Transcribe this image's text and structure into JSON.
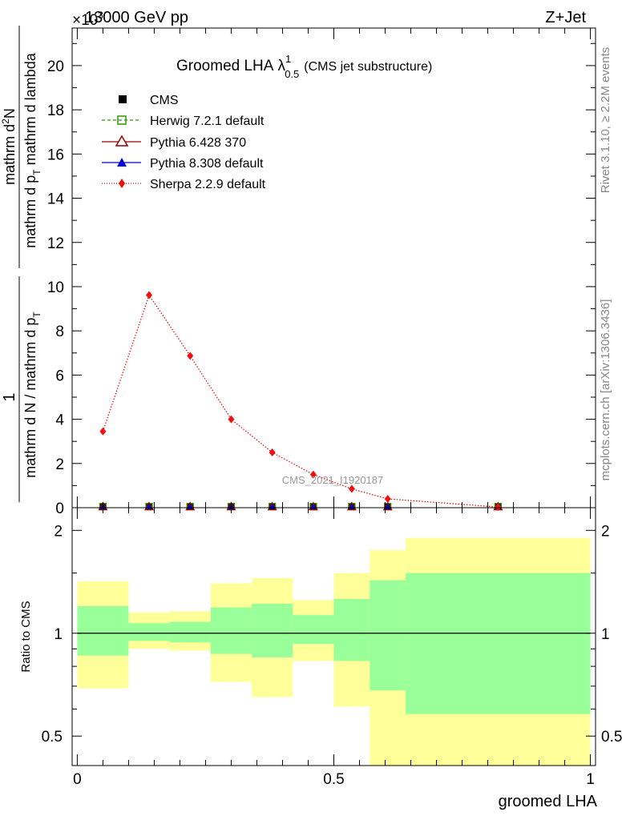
{
  "header": {
    "energy_label": "13000 GeV pp",
    "process_label": "Z+Jet",
    "exponent_label": "×10"
  },
  "title": {
    "main": "Groomed LHA",
    "lambda": "λ",
    "lambda_sup": "1",
    "lambda_sub": "0.5",
    "suffix": "(CMS jet substructure)"
  },
  "side_labels": {
    "rivet": "Rivet 3.1.10, ≥ 2.2M events",
    "mcplots": "mcplots.cern.ch [arXiv:1306.3436]"
  },
  "watermark": "CMS_2021_I1920187",
  "ylabel_main": {
    "num_one": "1",
    "den_one": "mathrm d N / mathrm d p",
    "den_one_sub": "T",
    "num_two": "mathrm d",
    "num_two_sup": "2",
    "num_two_rest": "N",
    "den_two": "mathrm d p",
    "den_two_sub": "T",
    "den_two_rest": " mathrm d lambda"
  },
  "ylabel_ratio": "Ratio to CMS",
  "xlabel": "groomed LHA",
  "colors": {
    "band_inner": "#99ff99",
    "band_outer": "#ffff99",
    "herwig": "#339900",
    "pythia6": "#990000",
    "pythia8": "#0000cc",
    "sherpa": "#ee1111"
  },
  "chart_data": [
    {
      "type": "line",
      "panel": "main",
      "ylim": [
        0,
        21.7
      ],
      "xlim": [
        -0.01,
        1.01
      ],
      "y_scale_exponent": "10^3",
      "yticks": [
        "0",
        "2",
        "4",
        "6",
        "8",
        "10",
        "12",
        "14",
        "16",
        "18",
        "20"
      ],
      "legend_placement": "top-left",
      "x": [
        0.05,
        0.14,
        0.22,
        0.3,
        0.38,
        0.46,
        0.535,
        0.605,
        0.82
      ],
      "series": [
        {
          "name": "CMS",
          "marker": "square",
          "values": [
            0.05,
            0.05,
            0.05,
            0.05,
            0.05,
            0.05,
            0.05,
            0.05,
            0.05
          ]
        },
        {
          "name": "Herwig 7.2.1 default",
          "marker": "open-square",
          "values": [
            0.05,
            0.05,
            0.05,
            0.05,
            0.05,
            0.05,
            0.05,
            0.05,
            0.05
          ]
        },
        {
          "name": "Pythia 6.428 370",
          "marker": "open-triangle",
          "values": [
            0.05,
            0.05,
            0.05,
            0.05,
            0.05,
            0.05,
            0.05,
            0.05,
            0.05
          ]
        },
        {
          "name": "Pythia 8.308 default",
          "marker": "triangle",
          "values": [
            0.05,
            0.05,
            0.05,
            0.05,
            0.05,
            0.05,
            0.05,
            0.05,
            0.05
          ]
        },
        {
          "name": "Sherpa 2.2.9 default",
          "marker": "diamond",
          "values": [
            3.45,
            9.62,
            6.87,
            4.0,
            2.5,
            1.5,
            0.85,
            0.4,
            0.03
          ]
        }
      ]
    },
    {
      "type": "area",
      "panel": "ratio",
      "ylabel": "Ratio to CMS",
      "xlabel": "groomed LHA",
      "y_scale": "log",
      "ylim": [
        0.41,
        2.33
      ],
      "xlim": [
        -0.01,
        1.01
      ],
      "yticks": [
        "0.5",
        "1",
        "2"
      ],
      "xticks": [
        "0",
        "0.5",
        "1"
      ],
      "reference": 1,
      "bins": [
        {
          "x_low": 0.0,
          "x_high": 0.1,
          "inner_low": 0.86,
          "inner_high": 1.2,
          "outer_low": 0.69,
          "outer_high": 1.42
        },
        {
          "x_low": 0.1,
          "x_high": 0.18,
          "inner_low": 0.95,
          "inner_high": 1.07,
          "outer_low": 0.9,
          "outer_high": 1.15
        },
        {
          "x_low": 0.18,
          "x_high": 0.26,
          "inner_low": 0.94,
          "inner_high": 1.08,
          "outer_low": 0.89,
          "outer_high": 1.16
        },
        {
          "x_low": 0.26,
          "x_high": 0.34,
          "inner_low": 0.87,
          "inner_high": 1.19,
          "outer_low": 0.72,
          "outer_high": 1.4
        },
        {
          "x_low": 0.34,
          "x_high": 0.42,
          "inner_low": 0.85,
          "inner_high": 1.22,
          "outer_low": 0.65,
          "outer_high": 1.45
        },
        {
          "x_low": 0.42,
          "x_high": 0.5,
          "inner_low": 0.93,
          "inner_high": 1.13,
          "outer_low": 0.83,
          "outer_high": 1.25
        },
        {
          "x_low": 0.5,
          "x_high": 0.57,
          "inner_low": 0.83,
          "inner_high": 1.26,
          "outer_low": 0.61,
          "outer_high": 1.5
        },
        {
          "x_low": 0.57,
          "x_high": 0.64,
          "inner_low": 0.68,
          "inner_high": 1.43,
          "outer_low": 0.38,
          "outer_high": 1.75
        },
        {
          "x_low": 0.64,
          "x_high": 1.0,
          "inner_low": 0.58,
          "inner_high": 1.5,
          "outer_low": 0.38,
          "outer_high": 1.9
        }
      ]
    }
  ]
}
